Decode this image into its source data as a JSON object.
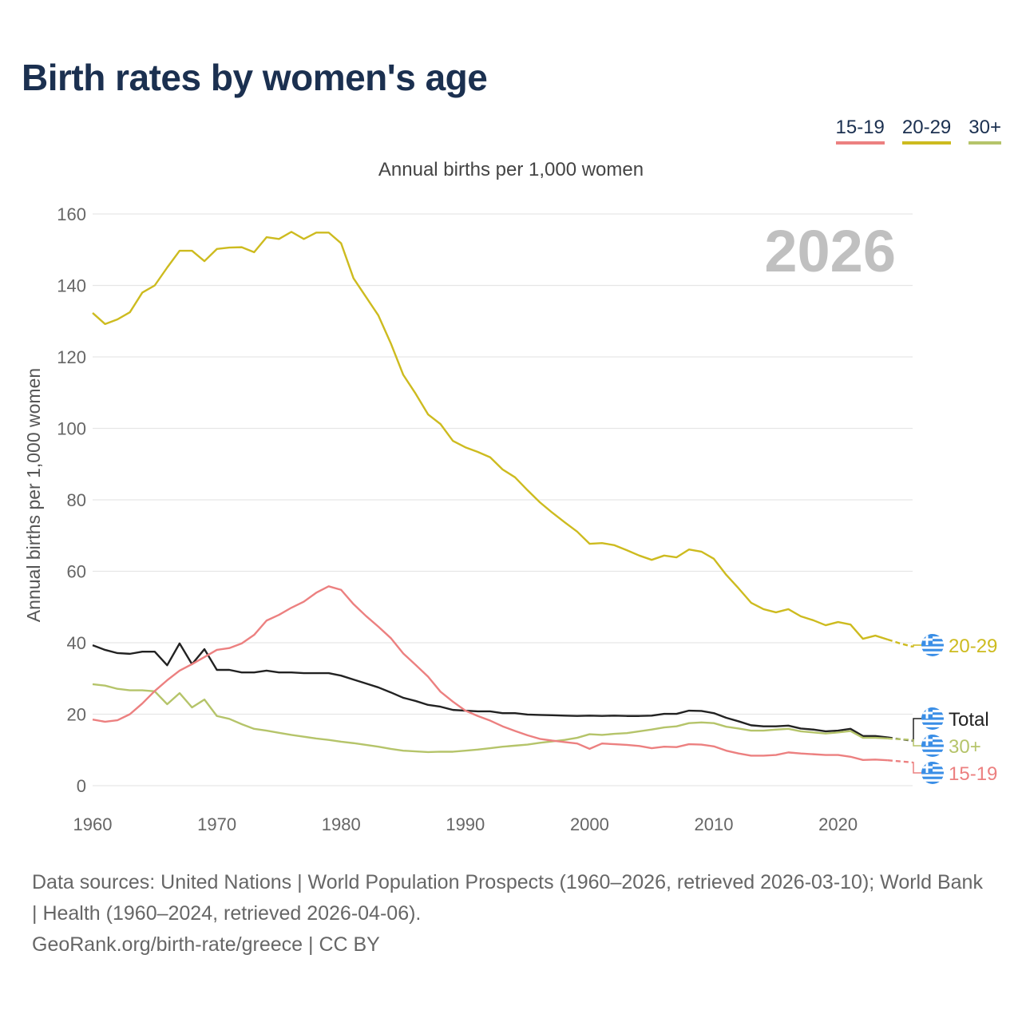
{
  "title": "Birth rates by women's age",
  "legend": [
    {
      "label": "15-19",
      "color": "#ec8080"
    },
    {
      "label": "20-29",
      "color": "#cdbb1f"
    },
    {
      "label": "30+",
      "color": "#b5c46a"
    }
  ],
  "year_watermark": "2026",
  "footer": {
    "sources": "Data sources: United Nations | World Population Prospects (1960–2026, retrieved 2026-03-10); World Bank | Health (1960–2024, retrieved 2026-04-06).",
    "credit": "GeoRank.org/birth-rate/greece | CC BY"
  },
  "chart_data": {
    "type": "line",
    "title": "Annual births per 1,000 women",
    "xlabel": "",
    "ylabel": "Annual births per 1,000 women",
    "xlim": [
      1960,
      2026
    ],
    "ylim": [
      0,
      160
    ],
    "xticks": [
      1960,
      1970,
      1980,
      1990,
      2000,
      2010,
      2020
    ],
    "yticks": [
      0,
      20,
      40,
      60,
      80,
      100,
      120,
      140,
      160
    ],
    "grid": true,
    "projection_from": 2024,
    "x_start": 1960,
    "series": [
      {
        "name": "20-29",
        "label": "20-29",
        "color": "#cdbb1f",
        "values": [
          132.3,
          129.2,
          130.5,
          132.5,
          138,
          140,
          145,
          149.7,
          149.7,
          146.8,
          150.2,
          150.6,
          150.7,
          149.3,
          153.5,
          153,
          155,
          153,
          154.8,
          154.8,
          151.8,
          142,
          136.8,
          131.6,
          123.8,
          115,
          109.7,
          103.9,
          101.2,
          96.5,
          94.7,
          93.4,
          91.9,
          88.5,
          86.3,
          82.7,
          79.3,
          76.4,
          73.7,
          71.1,
          67.7,
          67.9,
          67.3,
          65.9,
          64.4,
          63.2,
          64.4,
          63.9,
          66.1,
          65.5,
          63.5,
          59,
          55.2,
          51.2,
          49.4,
          48.5,
          49.4,
          47.4,
          46.3,
          44.9,
          45.8,
          45.1,
          41.1,
          42,
          40.9,
          39.8,
          38.9
        ]
      },
      {
        "name": "Total",
        "label": "Total",
        "color": "#222222",
        "values": [
          39.3,
          38,
          37.1,
          36.9,
          37.5,
          37.5,
          33.7,
          39.8,
          34,
          38.2,
          32.4,
          32.4,
          31.7,
          31.7,
          32.2,
          31.7,
          31.7,
          31.5,
          31.5,
          31.5,
          30.8,
          29.7,
          28.6,
          27.5,
          26.1,
          24.6,
          23.7,
          22.6,
          22.1,
          21.2,
          21,
          20.8,
          20.8,
          20.3,
          20.3,
          19.9,
          19.8,
          19.7,
          19.6,
          19.5,
          19.6,
          19.5,
          19.6,
          19.5,
          19.5,
          19.6,
          20.1,
          20.1,
          21,
          20.9,
          20.3,
          19,
          18,
          16.9,
          16.6,
          16.6,
          16.8,
          16,
          15.7,
          15.2,
          15.4,
          15.9,
          13.9,
          13.9,
          13.5,
          13,
          12.6
        ]
      },
      {
        "name": "30+",
        "label": "30+",
        "color": "#b5c46a",
        "values": [
          28.4,
          28,
          27.1,
          26.7,
          26.7,
          26.4,
          22.8,
          25.9,
          21.9,
          24.1,
          19.5,
          18.7,
          17.2,
          15.9,
          15.4,
          14.8,
          14.2,
          13.7,
          13.2,
          12.8,
          12.3,
          11.9,
          11.4,
          10.9,
          10.3,
          9.8,
          9.6,
          9.4,
          9.5,
          9.5,
          9.8,
          10.1,
          10.5,
          10.9,
          11.2,
          11.5,
          12,
          12.4,
          12.8,
          13.4,
          14.4,
          14.2,
          14.5,
          14.7,
          15.2,
          15.7,
          16.3,
          16.6,
          17.5,
          17.7,
          17.5,
          16.5,
          16,
          15.4,
          15.4,
          15.7,
          15.9,
          15.2,
          14.9,
          14.6,
          14.9,
          15.3,
          13.4,
          13.4,
          13.2,
          13,
          12.8
        ]
      },
      {
        "name": "15-19",
        "label": "15-19",
        "color": "#ec8080",
        "values": [
          18.5,
          17.9,
          18.3,
          20,
          23,
          26.5,
          29.5,
          32.2,
          34,
          36,
          38,
          38.5,
          39.8,
          42.2,
          46.2,
          47.8,
          49.8,
          51.5,
          54,
          55.8,
          54.8,
          50.8,
          47.5,
          44.5,
          41.3,
          37,
          33.8,
          30.5,
          26.3,
          23.5,
          21,
          19.5,
          18.2,
          16.6,
          15.3,
          14.1,
          13.1,
          12.6,
          12.2,
          11.8,
          10.3,
          11.8,
          11.6,
          11.4,
          11.1,
          10.5,
          10.9,
          10.8,
          11.6,
          11.5,
          11,
          9.8,
          9,
          8.4,
          8.4,
          8.6,
          9.3,
          9,
          8.8,
          8.6,
          8.6,
          8.1,
          7.2,
          7.3,
          7.1,
          6.8,
          6.5
        ]
      }
    ]
  }
}
